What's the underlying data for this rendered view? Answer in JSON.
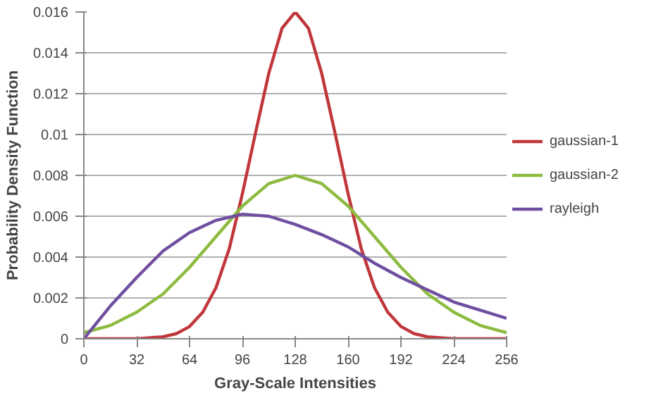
{
  "chart_data": {
    "type": "line",
    "xlabel": "Gray-Scale Intensities",
    "ylabel": "Probability Density Function",
    "xlim": [
      0,
      256
    ],
    "ylim": [
      0,
      0.016
    ],
    "xticks": [
      0,
      32,
      64,
      96,
      128,
      160,
      192,
      224,
      256
    ],
    "yticks": [
      0,
      0.002,
      0.004,
      0.006,
      0.008,
      0.01,
      0.012,
      0.014,
      0.016
    ],
    "grid": "y",
    "legend": "right",
    "marker": "none",
    "line_style": "solid",
    "series": [
      {
        "name": "gaussian-1",
        "color": "#c0363a",
        "x": [
          0,
          32,
          48,
          56,
          64,
          72,
          80,
          88,
          96,
          104,
          112,
          120,
          128,
          136,
          144,
          152,
          160,
          168,
          176,
          184,
          192,
          200,
          208,
          224,
          256
        ],
        "values": [
          0,
          0,
          0.0001,
          0.00025,
          0.0006,
          0.0013,
          0.0025,
          0.0044,
          0.0071,
          0.0101,
          0.013,
          0.0152,
          0.016,
          0.0152,
          0.013,
          0.0101,
          0.0071,
          0.0044,
          0.0025,
          0.0013,
          0.0006,
          0.00025,
          0.0001,
          0,
          0
        ]
      },
      {
        "name": "gaussian-2",
        "color": "#8dbb3f",
        "x": [
          0,
          16,
          32,
          48,
          64,
          80,
          96,
          112,
          128,
          144,
          160,
          176,
          192,
          208,
          224,
          240,
          256
        ],
        "values": [
          0.0003,
          0.00065,
          0.0013,
          0.0022,
          0.0035,
          0.005,
          0.0065,
          0.0076,
          0.008,
          0.0076,
          0.0065,
          0.005,
          0.0035,
          0.0022,
          0.0013,
          0.00065,
          0.0003
        ]
      },
      {
        "name": "rayleigh",
        "color": "#6f4fa0",
        "x": [
          0,
          16,
          32,
          48,
          64,
          80,
          96,
          112,
          128,
          144,
          160,
          176,
          192,
          208,
          224,
          240,
          256
        ],
        "values": [
          0,
          0.0016,
          0.003,
          0.0043,
          0.0052,
          0.0058,
          0.0061,
          0.006,
          0.0056,
          0.0051,
          0.0045,
          0.0037,
          0.003,
          0.0024,
          0.0018,
          0.0014,
          0.001
        ]
      }
    ]
  }
}
